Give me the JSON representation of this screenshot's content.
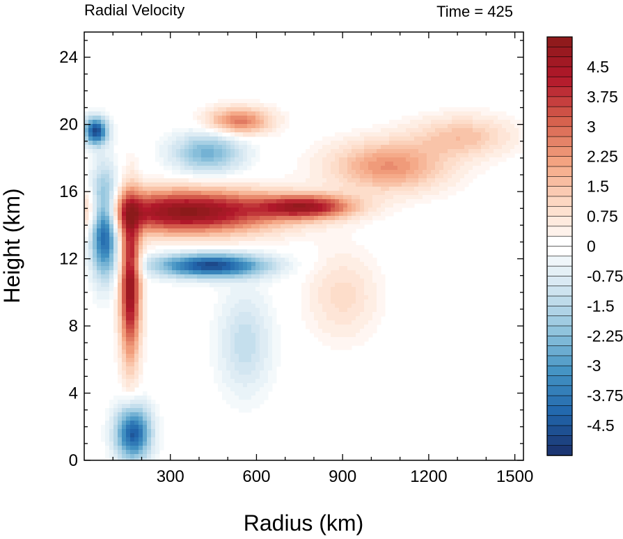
{
  "chart_data": {
    "type": "heatmap",
    "title": "Radial Velocity",
    "subtitle": "Time = 425",
    "xlabel": "Radius (km)",
    "ylabel": "Height (km)",
    "xlim": [
      0,
      1530
    ],
    "ylim": [
      0,
      25.5
    ],
    "x_ticks": [
      "300",
      "600",
      "900",
      "1200",
      "1500"
    ],
    "x_tick_values": [
      300,
      600,
      900,
      1200,
      1500
    ],
    "y_ticks": [
      "0",
      "4",
      "8",
      "12",
      "16",
      "20",
      "24"
    ],
    "y_tick_values": [
      0,
      4,
      8,
      12,
      16,
      20,
      24
    ],
    "colorbar": {
      "min": -5.25,
      "max": 5.25,
      "step": 0.25,
      "labels": [
        "4.5",
        "3.75",
        "3",
        "2.25",
        "1.5",
        "0.75",
        "0",
        "-0.75",
        "-1.5",
        "-2.25",
        "-3",
        "-3.75",
        "-4.5"
      ],
      "label_values": [
        4.5,
        3.75,
        3,
        2.25,
        1.5,
        0.75,
        0,
        -0.75,
        -1.5,
        -2.25,
        -3,
        -3.75,
        -4.5
      ],
      "colors": [
        "#1a2f6b",
        "#2166ac",
        "#4393c3",
        "#92c5de",
        "#d1e5f0",
        "#ffffff",
        "#fddbc7",
        "#f4a582",
        "#d6604d",
        "#b2182b",
        "#8b1a1a"
      ]
    },
    "features": [
      {
        "name": "upper outflow jet",
        "r_center": 360,
        "z_center": 14.8,
        "r_width": 320,
        "z_width": 1.3,
        "value": 5.2
      },
      {
        "name": "outflow tail",
        "r_center": 780,
        "z_center": 15.1,
        "r_width": 160,
        "z_width": 0.7,
        "value": 4.0
      },
      {
        "name": "upper inflow below jet",
        "r_center": 440,
        "z_center": 11.6,
        "r_width": 190,
        "z_width": 0.7,
        "value": -4.8
      },
      {
        "name": "eyewall inflow column",
        "r_center": 70,
        "z_center": 14.0,
        "r_width": 45,
        "z_width": 2.8,
        "value": -5.0
      },
      {
        "name": "eyewall outflow column",
        "r_center": 160,
        "z_center": 10.5,
        "r_width": 35,
        "z_width": 4.5,
        "value": 5.0
      },
      {
        "name": "low-level inflow",
        "r_center": 170,
        "z_center": 1.6,
        "r_width": 60,
        "z_width": 1.6,
        "value": -4.5
      },
      {
        "name": "upper-right outflow plume",
        "r_center": 1060,
        "z_center": 17.5,
        "r_width": 200,
        "z_width": 1.5,
        "value": 2.4
      },
      {
        "name": "top-right outflow plume",
        "r_center": 1320,
        "z_center": 19.3,
        "r_width": 170,
        "z_width": 1.2,
        "value": 1.5
      },
      {
        "name": "mid-level outflow",
        "r_center": 900,
        "z_center": 9.8,
        "r_width": 120,
        "z_width": 2.5,
        "value": 1.0
      },
      {
        "name": "mid-level inflow band",
        "r_center": 560,
        "z_center": 7.0,
        "r_width": 90,
        "z_width": 3.0,
        "value": -1.3
      },
      {
        "name": "upper inflow band",
        "r_center": 40,
        "z_center": 19.6,
        "r_width": 40,
        "z_width": 0.8,
        "value": -4.8
      },
      {
        "name": "upper outflow streak",
        "r_center": 540,
        "z_center": 20.2,
        "r_width": 110,
        "z_width": 0.8,
        "value": 2.8
      },
      {
        "name": "upper inflow streak",
        "r_center": 430,
        "z_center": 18.3,
        "r_width": 120,
        "z_width": 1.2,
        "value": -2.5
      }
    ]
  }
}
